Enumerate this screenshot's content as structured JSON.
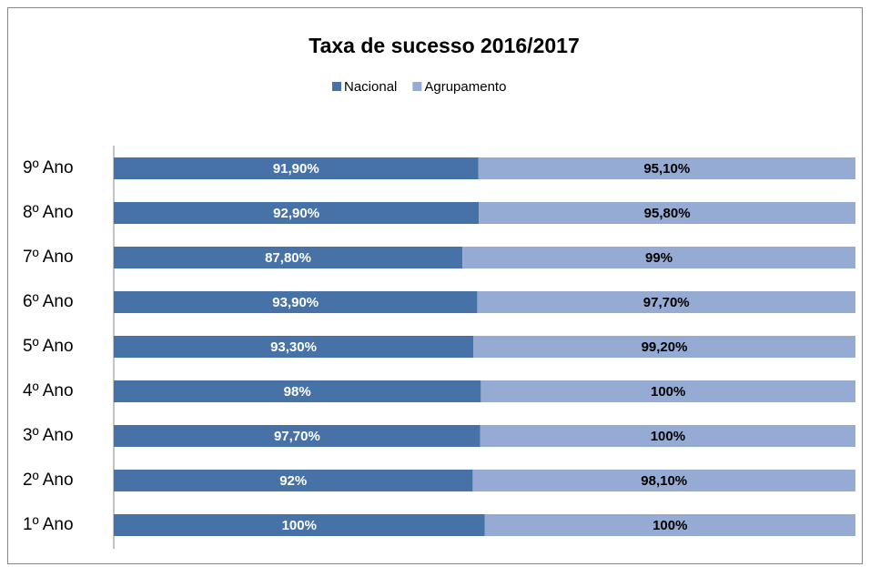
{
  "chart_data": {
    "type": "bar",
    "orientation": "horizontal",
    "stacked": "percent",
    "title": "Taxa de sucesso 2016/2017",
    "categories": [
      "1º Ano",
      "2º Ano",
      "3º Ano",
      "4º Ano",
      "5º Ano",
      "6º Ano",
      "7º Ano",
      "8º Ano",
      "9º Ano"
    ],
    "series": [
      {
        "name": "Nacional",
        "color": "#4672a8",
        "label_color": "#ffffff",
        "values": [
          100,
          92,
          97.7,
          98,
          93.3,
          93.9,
          87.8,
          92.9,
          91.9
        ],
        "value_labels": [
          "100%",
          "92%",
          "97,70%",
          "98%",
          "93,30%",
          "93,90%",
          "87,80%",
          "92,90%",
          "91,90%"
        ]
      },
      {
        "name": "Agrupamento",
        "color": "#95abd4",
        "label_color": "#000000",
        "values": [
          100,
          98.1,
          100,
          100,
          99.2,
          97.7,
          99,
          95.8,
          95.1
        ],
        "value_labels": [
          "100%",
          "98,10%",
          "100%",
          "100%",
          "99,20%",
          "97,70%",
          "99%",
          "95,80%",
          "95,10%"
        ]
      }
    ]
  }
}
